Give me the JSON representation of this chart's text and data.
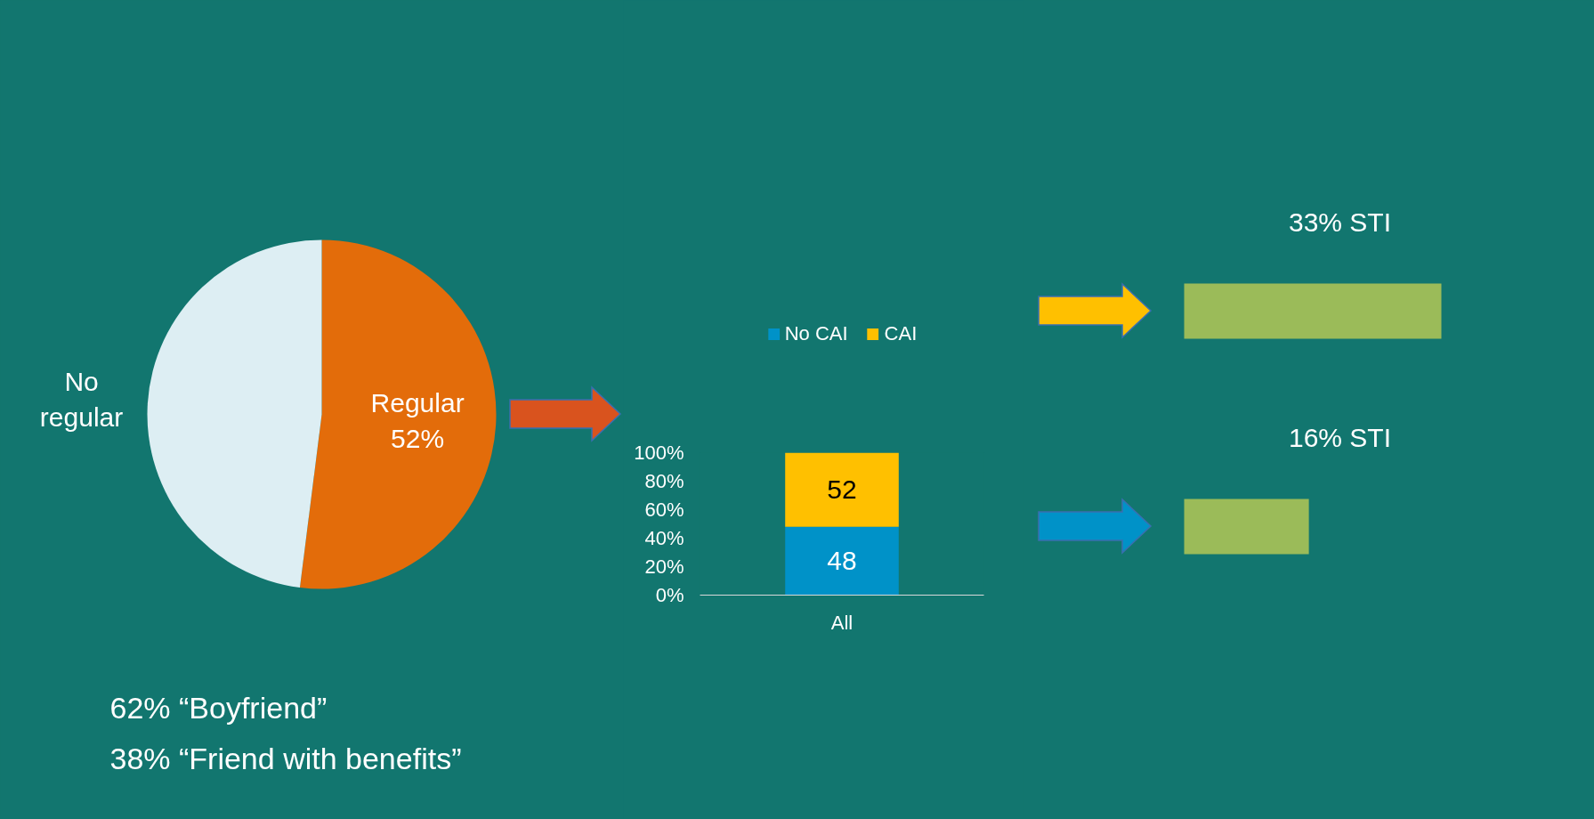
{
  "chart_data": [
    {
      "type": "pie",
      "categories": [
        "Regular",
        "No regular"
      ],
      "values": [
        52,
        48
      ],
      "colors": [
        "#e36c0a",
        "#ddeef3"
      ],
      "value_labels": [
        "52%",
        null
      ],
      "annotations": [
        "62% “Boyfriend”",
        "38% “Friend with benefits”"
      ]
    },
    {
      "type": "bar",
      "stacked": true,
      "categories": [
        "All"
      ],
      "series": [
        {
          "name": "No CAI",
          "color": "#0092c8",
          "values": [
            48
          ]
        },
        {
          "name": "CAI",
          "color": "#ffc000",
          "values": [
            52
          ]
        }
      ],
      "ylim": [
        0,
        100
      ],
      "yticks": [
        {
          "value": 0,
          "label": "0%"
        },
        {
          "value": 20,
          "label": "20%"
        },
        {
          "value": 40,
          "label": "40%"
        },
        {
          "value": 60,
          "label": "60%"
        },
        {
          "value": 80,
          "label": "80%"
        },
        {
          "value": 100,
          "label": "100%"
        }
      ],
      "data_labels": true,
      "legend": "top",
      "grid": false
    },
    {
      "type": "bar",
      "orientation": "horizontal",
      "tick_labels": false,
      "categories": [
        null,
        null
      ],
      "values": [
        33,
        16
      ],
      "color": "#9bbb59",
      "value_labels": [
        "33% STI",
        "16% STI"
      ]
    }
  ]
}
